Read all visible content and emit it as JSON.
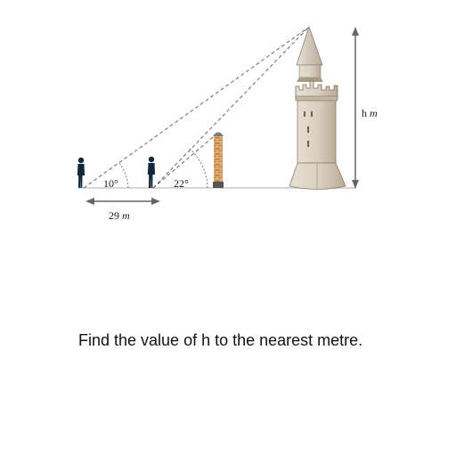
{
  "diagram": {
    "angle_far": "10°",
    "angle_near": "22°",
    "distance_value": "29",
    "distance_unit": "m",
    "height_var": "h",
    "height_unit": "m"
  },
  "question": "Find the value of h to the nearest metre."
}
